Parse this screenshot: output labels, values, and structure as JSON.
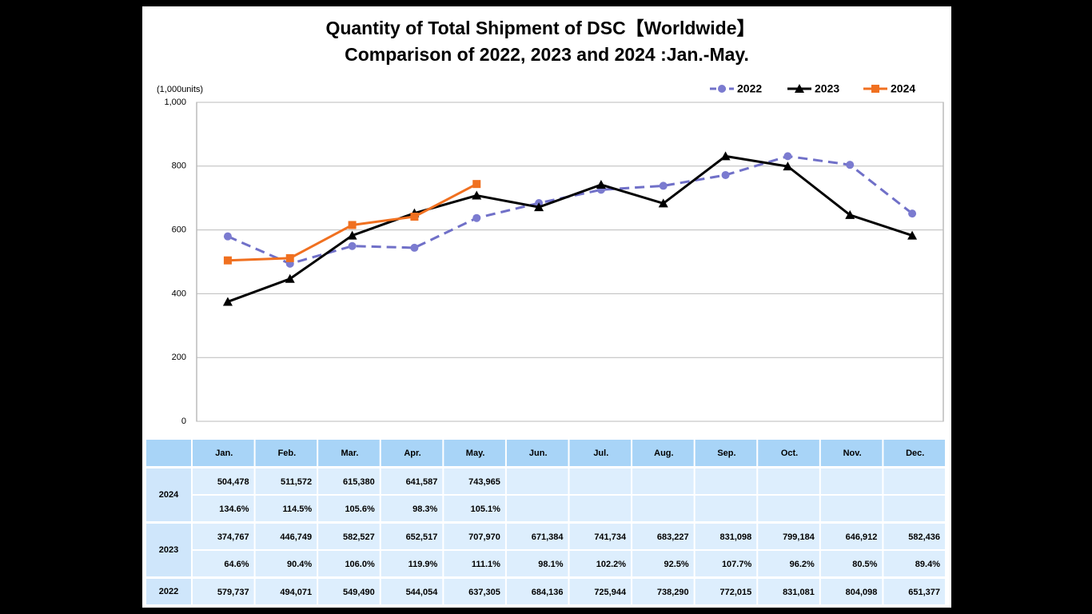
{
  "chart_data": {
    "type": "line",
    "title": "Quantity of Total Shipment of DSC【Worldwide】",
    "subtitle": "Comparison of 2022, 2023 and 2024 :Jan.-May.",
    "y_label": "(1,000units)",
    "categories": [
      "Jan.",
      "Feb.",
      "Mar.",
      "Apr.",
      "May.",
      "Jun.",
      "Jul.",
      "Aug.",
      "Sep.",
      "Oct.",
      "Nov.",
      "Dec."
    ],
    "ylim": [
      0,
      1000
    ],
    "yticks": [
      0,
      200,
      400,
      600,
      800,
      {
        "value": 1000,
        "label": "1,000"
      }
    ],
    "grid": true,
    "legend": "top-right",
    "series": [
      {
        "name": "2022",
        "color": "#7070c8",
        "dashed": true,
        "marker": "circle",
        "values": [
          579.737,
          494.071,
          549.49,
          544.054,
          637.305,
          684.136,
          725.944,
          738.29,
          772.015,
          831.081,
          804.098,
          651.377
        ],
        "value_labels": [
          "579,737",
          "494,071",
          "549,490",
          "544,054",
          "637,305",
          "684,136",
          "725,944",
          "738,290",
          "772,015",
          "831,081",
          "804,098",
          "651,377"
        ]
      },
      {
        "name": "2023",
        "color": "#000000",
        "dashed": false,
        "marker": "triangle",
        "values": [
          374.767,
          446.749,
          582.527,
          652.517,
          707.97,
          671.384,
          741.734,
          683.227,
          831.098,
          799.184,
          646.912,
          582.436
        ],
        "value_labels": [
          "374,767",
          "446,749",
          "582,527",
          "652,517",
          "707,970",
          "671,384",
          "741,734",
          "683,227",
          "831,098",
          "799,184",
          "646,912",
          "582,436"
        ],
        "ratios": [
          "64.6%",
          "90.4%",
          "106.0%",
          "119.9%",
          "111.1%",
          "98.1%",
          "102.2%",
          "92.5%",
          "107.7%",
          "96.2%",
          "80.5%",
          "89.4%"
        ]
      },
      {
        "name": "2024",
        "color": "#f07020",
        "dashed": false,
        "marker": "square",
        "values": [
          504.478,
          511.572,
          615.38,
          641.587,
          743.965,
          null,
          null,
          null,
          null,
          null,
          null,
          null
        ],
        "value_labels": [
          "504,478",
          "511,572",
          "615,380",
          "641,587",
          "743,965",
          null,
          null,
          null,
          null,
          null,
          null,
          null
        ],
        "ratios": [
          "134.6%",
          "114.5%",
          "105.6%",
          "98.3%",
          "105.1%",
          null,
          null,
          null,
          null,
          null,
          null,
          null
        ]
      }
    ]
  }
}
